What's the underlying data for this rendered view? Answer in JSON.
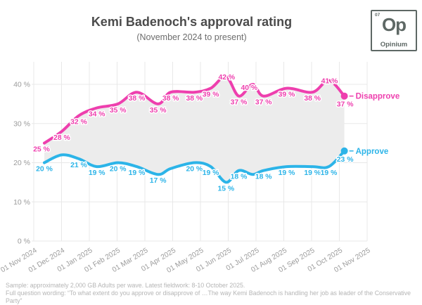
{
  "header": {
    "title": "Kemi Badenoch's approval rating",
    "subtitle": "(November 2024 to present)"
  },
  "logo": {
    "number": "07",
    "symbol": "Op",
    "name": "Opinium"
  },
  "footer": {
    "line1": "Sample: approximately 2,000 GB Adults per wave. Latest fieldwork: 8-10 October 2025.",
    "line2": "Full question wording: “To what extent do you approve or disapprove of …The way Kemi Badenoch is handling her job as leader of the Conservative Party”"
  },
  "chart_data": {
    "type": "line",
    "title": "Kemi Badenoch's approval rating",
    "subtitle": "(November 2024 to present)",
    "xlabel": "",
    "ylabel": "",
    "ylim": [
      0,
      45.7
    ],
    "grid": true,
    "band_fill": "#ececec",
    "axis_color": "#9b9b9b",
    "legend_position": "right-of-last-point",
    "y_ticks": [
      {
        "value": 0,
        "label": "0 %"
      },
      {
        "value": 10,
        "label": "10 %"
      },
      {
        "value": 20,
        "label": "20 %"
      },
      {
        "value": 30,
        "label": "30 %"
      },
      {
        "value": 40,
        "label": "40 %"
      }
    ],
    "x_ticks": [
      "01 Nov 2024",
      "01 Dec 2024",
      "01 Jan 2025",
      "01 Feb 2025",
      "01 Mar 2025",
      "01 Apr 2025",
      "01 May 2025",
      "01 Jun 2025",
      "01 Jul 2025",
      "01 Aug 2025",
      "01 Sep 2025",
      "01 Oct 2025",
      "01 Nov 2025"
    ],
    "x_unit": "months since 01 Nov 2024",
    "series": [
      {
        "name": "Disapprove",
        "color": "#ee3fae",
        "points": [
          {
            "x": 0.38,
            "value": 25,
            "label": "25 %"
          },
          {
            "x": 1.01,
            "value": 28,
            "label": "28 %"
          },
          {
            "x": 1.62,
            "value": 32,
            "label": "32 %"
          },
          {
            "x": 2.27,
            "value": 34,
            "label": "34 %"
          },
          {
            "x": 3.03,
            "value": 35,
            "label": "35 %"
          },
          {
            "x": 3.71,
            "value": 38,
            "label": "38 %"
          },
          {
            "x": 4.47,
            "value": 35,
            "label": "35 %"
          },
          {
            "x": 4.93,
            "value": 38,
            "label": "38 %"
          },
          {
            "x": 5.78,
            "value": 38,
            "label": "38 %"
          },
          {
            "x": 6.37,
            "value": 39,
            "label": "39 %"
          },
          {
            "x": 6.92,
            "value": 42,
            "label": "42 %"
          },
          {
            "x": 7.38,
            "value": 37,
            "label": "37 %"
          },
          {
            "x": 7.88,
            "value": 40,
            "label": "40 %"
          },
          {
            "x": 8.27,
            "value": 37,
            "label": "37 %"
          },
          {
            "x": 9.1,
            "value": 39,
            "label": "39 %"
          },
          {
            "x": 10.03,
            "value": 38,
            "label": "38 %"
          },
          {
            "x": 10.62,
            "value": 41,
            "label": "41 %"
          },
          {
            "x": 11.18,
            "value": 37,
            "label": "37 %"
          }
        ]
      },
      {
        "name": "Approve",
        "color": "#2cb4e8",
        "points": [
          {
            "x": 0.38,
            "value": 20,
            "label": "20 %"
          },
          {
            "x": 1.01,
            "value": 22,
            "label": ""
          },
          {
            "x": 1.62,
            "value": 21,
            "label": "21 %"
          },
          {
            "x": 2.27,
            "value": 19,
            "label": "19 %"
          },
          {
            "x": 3.03,
            "value": 20,
            "label": "20 %"
          },
          {
            "x": 3.71,
            "value": 19,
            "label": "19 %"
          },
          {
            "x": 4.47,
            "value": 17,
            "label": "17 %"
          },
          {
            "x": 4.93,
            "value": 18.5,
            "label": ""
          },
          {
            "x": 5.78,
            "value": 20,
            "label": "20 %"
          },
          {
            "x": 6.37,
            "value": 19,
            "label": "19 %"
          },
          {
            "x": 6.92,
            "value": 15,
            "label": "15 %"
          },
          {
            "x": 7.38,
            "value": 18,
            "label": "18 %"
          },
          {
            "x": 7.88,
            "value": 17,
            "label": ""
          },
          {
            "x": 8.27,
            "value": 18,
            "label": "18 %"
          },
          {
            "x": 9.1,
            "value": 19,
            "label": "19 %"
          },
          {
            "x": 10.03,
            "value": 19,
            "label": "19 %"
          },
          {
            "x": 10.62,
            "value": 19,
            "label": "19 %"
          },
          {
            "x": 11.18,
            "value": 23,
            "label": "23 %"
          }
        ]
      }
    ]
  }
}
